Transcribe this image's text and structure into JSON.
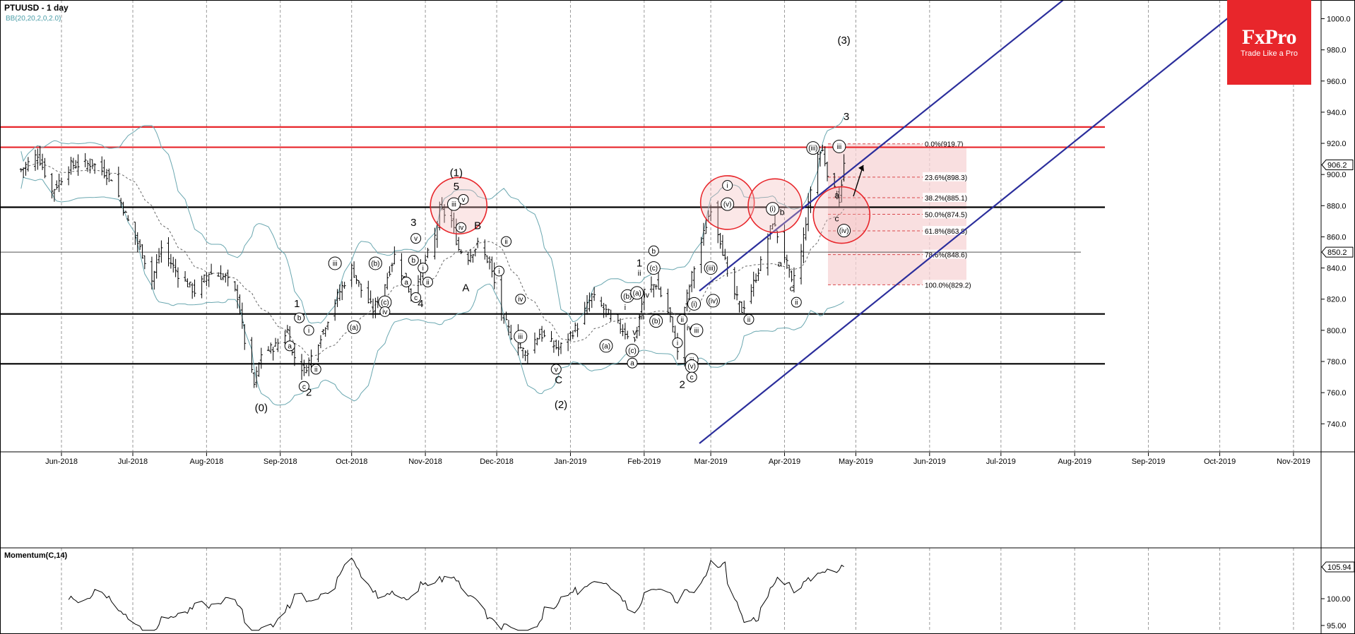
{
  "chart_data": {
    "type": "candlestick",
    "title": "PTUUSD - 1 day",
    "overlay": "BB(20,20,2,0,2.0)",
    "indicator_label": "Momentum(C,14)",
    "ylim": [
      722,
      1012
    ],
    "price_ticks": [
      "1000.0",
      "980.0",
      "960.0",
      "940.0",
      "920.0",
      "900.0",
      "880.0",
      "860.0",
      "840.0",
      "820.0",
      "800.0",
      "780.0",
      "760.0",
      "740.0"
    ],
    "months": [
      "Jun-2018",
      "Jul-2018",
      "Aug-2018",
      "Sep-2018",
      "Oct-2018",
      "Nov-2018",
      "Dec-2018",
      "Jan-2019",
      "Feb-2019",
      "Mar-2019",
      "Apr-2019",
      "May-2019",
      "Jun-2019",
      "Jul-2019",
      "Aug-2019",
      "Sep-2019",
      "Oct-2019",
      "Nov-2019"
    ],
    "last_price": "906.2",
    "ref_price_label": "850.2",
    "ref_price": 850.2,
    "resistance_lines": [
      930.5,
      917.5
    ],
    "support_lines": [
      879,
      810.5,
      778.5
    ],
    "fibonacci": [
      {
        "label": "0.0%(919.7)",
        "price": 919.7
      },
      {
        "label": "23.6%(898.3)",
        "price": 898.3
      },
      {
        "label": "38.2%(885.1)",
        "price": 885.1
      },
      {
        "label": "50.0%(874.5)",
        "price": 874.5
      },
      {
        "label": "61.8%(863.8)",
        "price": 863.8
      },
      {
        "label": "78.6%(848.6)",
        "price": 848.6
      },
      {
        "label": "100.0%(829.2)",
        "price": 829.2
      }
    ],
    "series_anchors": [
      [
        "2018-05-15",
        903
      ],
      [
        "2018-05-22",
        913
      ],
      [
        "2018-05-28",
        889
      ],
      [
        "2018-06-05",
        906
      ],
      [
        "2018-06-14",
        907
      ],
      [
        "2018-06-22",
        898
      ],
      [
        "2018-06-29",
        870
      ],
      [
        "2018-07-05",
        849
      ],
      [
        "2018-07-09",
        832
      ],
      [
        "2018-07-13",
        853
      ],
      [
        "2018-07-20",
        836
      ],
      [
        "2018-07-27",
        825
      ],
      [
        "2018-08-02",
        837
      ],
      [
        "2018-08-09",
        834
      ],
      [
        "2018-08-14",
        822
      ],
      [
        "2018-08-17",
        793
      ],
      [
        "2018-08-21",
        765
      ],
      [
        "2018-08-24",
        785
      ],
      [
        "2018-08-30",
        790
      ],
      [
        "2018-09-04",
        800
      ],
      [
        "2018-09-06",
        785
      ],
      [
        "2018-09-11",
        774
      ],
      [
        "2018-09-14",
        783
      ],
      [
        "2018-09-19",
        800
      ],
      [
        "2018-09-25",
        822
      ],
      [
        "2018-10-01",
        840
      ],
      [
        "2018-10-05",
        826
      ],
      [
        "2018-10-10",
        813
      ],
      [
        "2018-10-15",
        830
      ],
      [
        "2018-10-19",
        848
      ],
      [
        "2018-10-24",
        830
      ],
      [
        "2018-10-26",
        823
      ],
      [
        "2018-11-01",
        845
      ],
      [
        "2018-11-05",
        860
      ],
      [
        "2018-11-07",
        878
      ],
      [
        "2018-11-12",
        870
      ],
      [
        "2018-11-15",
        852
      ],
      [
        "2018-11-19",
        847
      ],
      [
        "2018-11-23",
        855
      ],
      [
        "2018-11-28",
        843
      ],
      [
        "2018-12-03",
        811
      ],
      [
        "2018-12-07",
        797
      ],
      [
        "2018-12-13",
        785
      ],
      [
        "2018-12-19",
        798
      ],
      [
        "2018-12-27",
        788
      ],
      [
        "2019-01-04",
        803
      ],
      [
        "2019-01-10",
        822
      ],
      [
        "2019-01-16",
        812
      ],
      [
        "2019-01-22",
        802
      ],
      [
        "2019-01-28",
        793
      ],
      [
        "2019-02-01",
        825
      ],
      [
        "2019-02-06",
        830
      ],
      [
        "2019-02-12",
        808
      ],
      [
        "2019-02-15",
        785
      ],
      [
        "2019-02-18",
        815
      ],
      [
        "2019-02-21",
        835
      ],
      [
        "2019-02-26",
        862
      ],
      [
        "2019-03-01",
        879
      ],
      [
        "2019-03-05",
        858
      ],
      [
        "2019-03-09",
        830
      ],
      [
        "2019-03-14",
        813
      ],
      [
        "2019-03-18",
        826
      ],
      [
        "2019-03-22",
        843
      ],
      [
        "2019-03-27",
        870
      ],
      [
        "2019-04-01",
        848
      ],
      [
        "2019-04-04",
        830
      ],
      [
        "2019-04-08",
        850
      ],
      [
        "2019-04-11",
        880
      ],
      [
        "2019-04-14",
        912
      ],
      [
        "2019-04-17",
        915
      ],
      [
        "2019-04-20",
        895
      ],
      [
        "2019-04-24",
        884
      ],
      [
        "2019-04-26",
        906
      ]
    ],
    "momentum_ticks": [
      "105.94",
      "100.00",
      "95.00"
    ],
    "momentum_ylim": [
      93.8,
      109.5
    ],
    "momentum_last": 105.94,
    "wave_labels": [
      {
        "t": "(0)",
        "d": "2018-08-24",
        "p": 748,
        "s": 15
      },
      {
        "t": "1",
        "d": "2018-09-08",
        "p": 815,
        "s": 15
      },
      {
        "t": "2",
        "d": "2018-09-13",
        "p": 758,
        "s": 15
      },
      {
        "t": "3",
        "d": "2018-10-27",
        "p": 867,
        "s": 15
      },
      {
        "t": "4",
        "d": "2018-10-30",
        "p": 815,
        "s": 15
      },
      {
        "t": "(1)",
        "d": "2018-11-14",
        "p": 899,
        "s": 15
      },
      {
        "t": "5",
        "d": "2018-11-14",
        "p": 890,
        "s": 15
      },
      {
        "t": "A",
        "d": "2018-11-18",
        "p": 825,
        "s": 15
      },
      {
        "t": "B",
        "d": "2018-11-23",
        "p": 865,
        "s": 15
      },
      {
        "t": "C",
        "d": "2018-12-27",
        "p": 766,
        "s": 15
      },
      {
        "t": "(2)",
        "d": "2018-12-28",
        "p": 750,
        "s": 15
      },
      {
        "t": "1",
        "d": "2019-01-30",
        "p": 841,
        "s": 15
      },
      {
        "t": "2",
        "d": "2019-02-17",
        "p": 763,
        "s": 15
      },
      {
        "t": "(3)",
        "d": "2019-04-26",
        "p": 984,
        "s": 15
      },
      {
        "t": "3",
        "d": "2019-04-27",
        "p": 935,
        "s": 15
      },
      {
        "t": "a",
        "d": "2019-04-23",
        "p": 885,
        "s": 12
      },
      {
        "t": "b",
        "d": "2019-03-31",
        "p": 874,
        "s": 12
      },
      {
        "t": "a",
        "d": "2019-03-30",
        "p": 841,
        "s": 12
      },
      {
        "t": "c",
        "d": "2019-04-23",
        "p": 870,
        "s": 12
      },
      {
        "t": "c",
        "d": "2019-04-04",
        "p": 825,
        "s": 12
      },
      {
        "t": "v",
        "d": "2019-01-28",
        "p": 797,
        "s": 12
      }
    ],
    "circled_labels": [
      {
        "t": "i",
        "d": "2018-09-13",
        "p": 800
      },
      {
        "t": "ii",
        "d": "2018-09-16",
        "p": 775
      },
      {
        "t": "b",
        "d": "2018-09-09",
        "p": 808
      },
      {
        "t": "a",
        "d": "2018-09-05",
        "p": 790
      },
      {
        "t": "c",
        "d": "2018-09-11",
        "p": 764
      },
      {
        "t": "iii",
        "d": "2018-09-24",
        "p": 843
      },
      {
        "t": "(a)",
        "d": "2018-10-02",
        "p": 802
      },
      {
        "t": "(b)",
        "d": "2018-10-11",
        "p": 843
      },
      {
        "t": "(c)",
        "d": "2018-10-15",
        "p": 818
      },
      {
        "t": "iv",
        "d": "2018-10-15",
        "p": 812
      },
      {
        "t": "v",
        "d": "2018-10-28",
        "p": 859
      },
      {
        "t": "b",
        "d": "2018-10-27",
        "p": 845
      },
      {
        "t": "a",
        "d": "2018-10-24",
        "p": 831
      },
      {
        "t": "c",
        "d": "2018-10-28",
        "p": 821
      },
      {
        "t": "ii",
        "d": "2018-11-02",
        "p": 831
      },
      {
        "t": "i",
        "d": "2018-10-31",
        "p": 840
      },
      {
        "t": "iii",
        "d": "2018-11-13",
        "p": 881
      },
      {
        "t": "v",
        "d": "2018-11-17",
        "p": 884
      },
      {
        "t": "iv",
        "d": "2018-11-16",
        "p": 866
      },
      {
        "t": "ii",
        "d": "2018-12-05",
        "p": 857
      },
      {
        "t": "i",
        "d": "2018-12-02",
        "p": 838
      },
      {
        "t": "iv",
        "d": "2018-12-11",
        "p": 820
      },
      {
        "t": "iii",
        "d": "2018-12-11",
        "p": 796
      },
      {
        "t": "v",
        "d": "2018-12-26",
        "p": 775
      },
      {
        "t": "(a)",
        "d": "2019-01-16",
        "p": 790
      },
      {
        "t": "(b)",
        "d": "2019-01-25",
        "p": 822
      },
      {
        "t": "(c)",
        "d": "2019-01-27",
        "p": 787
      },
      {
        "t": "a",
        "d": "2019-01-27",
        "p": 779
      },
      {
        "t": "(b)",
        "d": "2019-02-06",
        "p": 806
      },
      {
        "t": "(a)",
        "d": "2019-01-29",
        "p": 824
      },
      {
        "t": "b",
        "d": "2019-02-05",
        "p": 851
      },
      {
        "t": "(c)",
        "d": "2019-02-05",
        "p": 840
      },
      {
        "t": "ii",
        "d": "2019-02-17",
        "p": 807
      },
      {
        "t": "i",
        "d": "2019-02-15",
        "p": 792
      },
      {
        "t": "iii",
        "d": "2019-02-21",
        "p": 781
      },
      {
        "t": "(v)",
        "d": "2019-02-21",
        "p": 777
      },
      {
        "t": "c",
        "d": "2019-02-21",
        "p": 770
      },
      {
        "t": "(i)",
        "d": "2019-02-22",
        "p": 817
      },
      {
        "t": "iii",
        "d": "2019-02-23",
        "p": 800
      },
      {
        "t": "(iii)",
        "d": "2019-03-01",
        "p": 840
      },
      {
        "t": "(iv)",
        "d": "2019-03-02",
        "p": 819
      },
      {
        "t": "i",
        "d": "2019-03-08",
        "p": 893
      },
      {
        "t": "(v)",
        "d": "2019-03-08",
        "p": 881
      },
      {
        "t": "ii",
        "d": "2019-03-17",
        "p": 807
      },
      {
        "t": "(i)",
        "d": "2019-03-27",
        "p": 878
      },
      {
        "t": "ii",
        "d": "2019-04-06",
        "p": 818
      },
      {
        "t": "(iii)",
        "d": "2019-04-13",
        "p": 917
      },
      {
        "t": "iii",
        "d": "2019-04-24",
        "p": 918
      },
      {
        "t": "(iv)",
        "d": "2019-04-26",
        "p": 864
      }
    ],
    "plain_small_labels": [
      {
        "t": "ii",
        "d": "2019-01-30",
        "p": 835
      },
      {
        "t": "i",
        "d": "2019-01-24",
        "p": 813
      },
      {
        "t": "iv",
        "d": "2019-02-02",
        "p": 821
      },
      {
        "t": "iii",
        "d": "2019-01-31",
        "p": 807
      },
      {
        "t": "iv",
        "d": "2019-02-20",
        "p": 800
      }
    ]
  }
}
